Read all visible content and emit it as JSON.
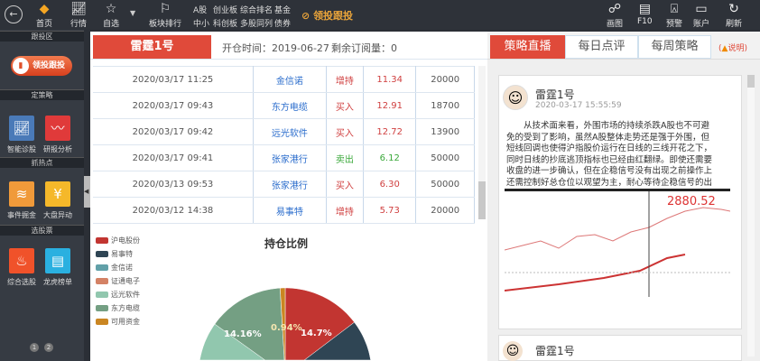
{
  "toolbar": {
    "items": [
      {
        "label": "首页",
        "icon": "diamond-icon"
      },
      {
        "label": "行情",
        "icon": "chart-icon"
      },
      {
        "label": "自选",
        "icon": "star-icon"
      },
      {
        "label": "板块排行",
        "icon": "bookmark-icon"
      }
    ],
    "links": [
      "A股",
      "创业板",
      "综合排名",
      "基金",
      "中小",
      "科创板",
      "多股同列",
      "债券"
    ],
    "promo": "领投跟投",
    "right_items": [
      {
        "label": "画图",
        "icon": "draw-icon"
      },
      {
        "label": "F10",
        "icon": "clipboard-icon"
      },
      {
        "label": "预警",
        "icon": "alarm-icon"
      },
      {
        "label": "账户",
        "icon": "account-icon"
      },
      {
        "label": "刷新",
        "icon": "refresh-icon"
      }
    ]
  },
  "sidebar": {
    "sections": [
      "跟投区",
      "定策略",
      "抓热点",
      "选股票"
    ],
    "follow_button": "领投跟投",
    "tiles": [
      {
        "label": "智能诊股",
        "color": "#4a7ab8"
      },
      {
        "label": "研报分析",
        "color": "#e03a3a"
      },
      {
        "label": "事件掘金",
        "color": "#f09a3a"
      },
      {
        "label": "大盘异动",
        "color": "#f5b82a"
      },
      {
        "label": "综合选股",
        "color": "#f0522a"
      },
      {
        "label": "龙虎榜单",
        "color": "#2ab0e0"
      }
    ],
    "pages": [
      "1",
      "2"
    ]
  },
  "main": {
    "title": "雷霆1号",
    "open_time": "开仓时间：2019-06-27",
    "remaining": "剩余订阅量：0",
    "rows": [
      [
        "2020/03/17 11:25",
        "金信诺",
        "增持",
        "11.34",
        "20000"
      ],
      [
        "2020/03/17 09:43",
        "东方电缆",
        "买入",
        "12.91",
        "18700"
      ],
      [
        "2020/03/17 09:42",
        "远光软件",
        "买入",
        "12.72",
        "13900"
      ],
      [
        "2020/03/17 09:41",
        "张家港行",
        "卖出",
        "6.12",
        "50000"
      ],
      [
        "2020/03/13 09:53",
        "张家港行",
        "买入",
        "6.30",
        "50000"
      ],
      [
        "2020/03/12 14:38",
        "易事特",
        "增持",
        "5.73",
        "20000"
      ]
    ]
  },
  "chart_data": {
    "type": "pie",
    "title": "持仓比例",
    "legend_position": "left",
    "series": [
      {
        "name": "沪电股份",
        "value": 14.7,
        "color": "#c23531"
      },
      {
        "name": "易事特",
        "value": 17.5,
        "color": "#2f4554"
      },
      {
        "name": "金信诺",
        "value": 18,
        "color": "#61a0a8"
      },
      {
        "name": "证通电子",
        "value": 17.5,
        "color": "#d48265"
      },
      {
        "name": "远光软件",
        "value": 17.2,
        "color": "#91c7ae"
      },
      {
        "name": "东方电缆",
        "value": 14.16,
        "color": "#749f83"
      },
      {
        "name": "可用资金",
        "value": 0.94,
        "color": "#ca8622"
      }
    ],
    "labels": [
      "14.7%",
      "14.16%",
      "0.94%"
    ]
  },
  "right": {
    "tabs": [
      "策略直播",
      "每日点评",
      "每周策略"
    ],
    "help": "说明",
    "post": {
      "author": "雷霆1号",
      "time": "2020-03-17 15:55:59",
      "text": "从技术面来看，外围市场的持续杀跌A股也不可避免的受到了影响，虽然A股整体走势还是强于外围，但短线回调也使得沪指股价运行在日线的三线开花之下，同时日线的抄底逃顶指标也已经由红翻绿。即使还需要收盘的进一步确认，但在企稳信号没有出现之前操作上还需控制好总仓位以观望为主，耐心等待企稳信号的出现。",
      "quote": "2880.52"
    },
    "post2_author": "雷霆1号"
  }
}
